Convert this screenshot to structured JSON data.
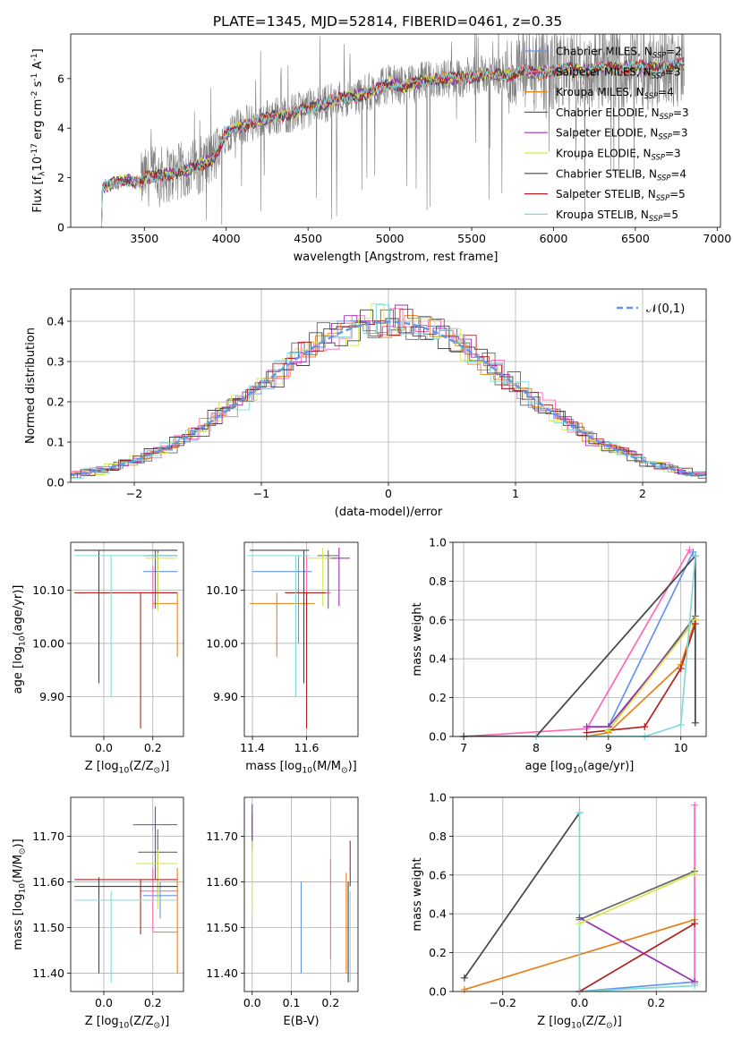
{
  "figure": {
    "title": "PLATE=1345, MJD=52814, FIBERID=0461, z=0.35"
  },
  "legend_entries": [
    {
      "name": "Chabrier MILES",
      "nssp": "2",
      "color": "#6495ed"
    },
    {
      "name": "Salpeter MILES",
      "nssp": "3",
      "color": "#ff69b4"
    },
    {
      "name": "Kroupa MILES",
      "nssp": "4",
      "color": "#e8801a"
    },
    {
      "name": "Chabrier ELODIE",
      "nssp": "3",
      "color": "#666666"
    },
    {
      "name": "Salpeter ELODIE",
      "nssp": "3",
      "color": "#9b30b8"
    },
    {
      "name": "Kroupa ELODIE",
      "nssp": "3",
      "color": "#d7e84a"
    },
    {
      "name": "Chabrier STELIB",
      "nssp": "4",
      "color": "#444444"
    },
    {
      "name": "Salpeter STELIB",
      "nssp": "5",
      "color": "#b22222"
    },
    {
      "name": "Kroupa STELIB",
      "nssp": "5",
      "color": "#7fdbda"
    }
  ],
  "chart_data": [
    {
      "id": "spectrum",
      "type": "line",
      "title": "PLATE=1345, MJD=52814, FIBERID=0461, z=0.35",
      "xlabel": "wavelength [Angstrom, rest frame]",
      "ylabel": "Flux [f$_\\lambda$10$^{-17}$ erg cm$^{-2}$ s$^{-1}$ A$^{-1}$]",
      "xlim": [
        3050,
        7020
      ],
      "ylim": [
        0,
        7.8
      ],
      "xticks": [
        3500,
        4000,
        4500,
        5000,
        5500,
        6000,
        6500,
        7000
      ],
      "yticks": [
        0,
        2,
        4,
        6
      ],
      "grid": false,
      "legend_position": "top-right",
      "data_continuum": {
        "x": [
          3220,
          3240,
          3300,
          3400,
          3480,
          3500,
          3600,
          3700,
          3800,
          3900,
          3950,
          4000,
          4100,
          4200,
          4300,
          4400,
          4500,
          4600,
          4700,
          4800,
          4900,
          5000,
          5100,
          5200,
          5300,
          5400,
          5500,
          5600,
          5700,
          5800,
          5900,
          6000,
          6100,
          6200,
          6300,
          6400,
          6500,
          6600,
          6700,
          6800
        ],
        "y": [
          0.0,
          1.6,
          1.75,
          1.9,
          1.8,
          2.0,
          2.1,
          2.2,
          2.4,
          2.7,
          3.0,
          3.8,
          4.1,
          4.3,
          4.5,
          4.6,
          4.8,
          5.0,
          5.2,
          5.3,
          5.5,
          5.8,
          5.7,
          5.9,
          6.0,
          6.0,
          6.1,
          6.2,
          6.1,
          6.3,
          6.2,
          6.3,
          6.4,
          6.3,
          6.5,
          6.4,
          6.5,
          6.4,
          6.5,
          6.6
        ]
      },
      "noise": {
        "data_start": 3480,
        "data_end": 6800,
        "strong_from": 5700,
        "model_start": 3220,
        "model_end": 6800
      }
    },
    {
      "id": "residuals",
      "type": "step",
      "xlabel": "(data-model)/error",
      "ylabel": "Normed distribution",
      "xlim": [
        -2.5,
        2.5
      ],
      "ylim": [
        0,
        0.48
      ],
      "xticks": [
        -2,
        -1,
        0,
        1,
        2
      ],
      "yticks": [
        0.0,
        0.1,
        0.2,
        0.3,
        0.4
      ],
      "grid": true,
      "gaussian_label": "$\\mathcal{N}(0,1)$",
      "legend_position": "top-right",
      "bin_width": 0.1
    },
    {
      "id": "age_vs_Z",
      "type": "errorbar",
      "xlabel": "Z [log$_{10}$(Z/Z$_\\odot$)]",
      "ylabel": "age  [log$_{10}$(age/yr)]",
      "xlim": [
        -0.135,
        0.325
      ],
      "ylim": [
        9.825,
        10.19
      ],
      "xticks": [
        0.0,
        0.2
      ],
      "yticks": [
        9.9,
        10.0,
        10.1
      ],
      "grid": true,
      "points": [
        {
          "series": "Chabrier MILES",
          "x": 0.23,
          "xerr": [
            0.07,
            0.07
          ],
          "y": 10.135,
          "yerr": [
            0.0,
            0.0
          ]
        },
        {
          "series": "Salpeter MILES",
          "x": 0.2,
          "xerr": [
            0.05,
            0.1
          ],
          "y": 10.095,
          "yerr": [
            0.03,
            0.05
          ]
        },
        {
          "series": "Kroupa MILES",
          "x": 0.3,
          "xerr": [
            0.1,
            0.0
          ],
          "y": 10.075,
          "yerr": [
            0.1,
            0.02
          ]
        },
        {
          "series": "Chabrier ELODIE",
          "x": 0.22,
          "xerr": [
            0.06,
            0.08
          ],
          "y": 10.165,
          "yerr": [
            0.1,
            0.01
          ]
        },
        {
          "series": "Salpeter ELODIE",
          "x": 0.21,
          "xerr": [
            0.04,
            0.09
          ],
          "y": 10.165,
          "yerr": [
            0.1,
            0.01
          ]
        },
        {
          "series": "Kroupa ELODIE",
          "x": 0.22,
          "xerr": [
            0.05,
            0.08
          ],
          "y": 10.16,
          "yerr": [
            0.1,
            0.01
          ]
        },
        {
          "series": "Chabrier STELIB",
          "x": -0.02,
          "xerr": [
            0.1,
            0.32
          ],
          "y": 10.175,
          "yerr": [
            0.25,
            0.0
          ]
        },
        {
          "series": "Salpeter STELIB",
          "x": 0.15,
          "xerr": [
            0.27,
            0.15
          ],
          "y": 10.095,
          "yerr": [
            0.255,
            0.0
          ]
        },
        {
          "series": "Kroupa STELIB",
          "x": 0.03,
          "xerr": [
            0.15,
            0.27
          ],
          "y": 10.165,
          "yerr": [
            0.265,
            0.0
          ]
        }
      ]
    },
    {
      "id": "age_vs_mass",
      "type": "errorbar",
      "xlabel": "mass [log$_{10}$(M/M$_\\odot$)]",
      "ylabel": "",
      "xlim": [
        11.37,
        11.79
      ],
      "ylim": [
        9.825,
        10.19
      ],
      "xticks": [
        11.4,
        11.6
      ],
      "yticks": [
        9.9,
        10.0,
        10.1
      ],
      "grid": true,
      "points": [
        {
          "series": "Chabrier MILES",
          "x": 11.57,
          "xerr": [
            0.17,
            0.05
          ],
          "y": 10.135,
          "yerr": [
            0.135,
            0.03
          ]
        },
        {
          "series": "Salpeter MILES",
          "x": 11.6,
          "xerr": [
            0.08,
            0.09
          ],
          "y": 10.095,
          "yerr": [
            0.05,
            0.07
          ]
        },
        {
          "series": "Kroupa MILES",
          "x": 11.49,
          "xerr": [
            0.1,
            0.14
          ],
          "y": 10.075,
          "yerr": [
            0.1,
            0.02
          ]
        },
        {
          "series": "Chabrier ELODIE",
          "x": 11.68,
          "xerr": [
            0.04,
            0.04
          ],
          "y": 10.165,
          "yerr": [
            0.1,
            0.01
          ]
        },
        {
          "series": "Salpeter ELODIE",
          "x": 11.72,
          "xerr": [
            0.05,
            0.04
          ],
          "y": 10.16,
          "yerr": [
            0.09,
            0.02
          ]
        },
        {
          "series": "Kroupa ELODIE",
          "x": 11.66,
          "xerr": [
            0.06,
            0.03
          ],
          "y": 10.16,
          "yerr": [
            0.09,
            0.02
          ]
        },
        {
          "series": "Chabrier STELIB",
          "x": 11.59,
          "xerr": [
            0.2,
            0.02
          ],
          "y": 10.175,
          "yerr": [
            0.25,
            0.0
          ]
        },
        {
          "series": "Salpeter STELIB",
          "x": 11.6,
          "xerr": [
            0.08,
            0.07
          ],
          "y": 10.095,
          "yerr": [
            0.255,
            0.0
          ]
        },
        {
          "series": "Kroupa STELIB",
          "x": 11.56,
          "xerr": [
            0.18,
            0.05
          ],
          "y": 10.165,
          "yerr": [
            0.265,
            0.0
          ]
        }
      ]
    },
    {
      "id": "weight_vs_age",
      "type": "line",
      "xlabel": "age  [log$_{10}$(age/yr)]",
      "ylabel": "mass weight",
      "xlim": [
        6.85,
        10.35
      ],
      "ylim": [
        0,
        1.0
      ],
      "xticks": [
        7,
        8,
        9,
        10
      ],
      "yticks": [
        0.0,
        0.2,
        0.4,
        0.6,
        0.8,
        1.0
      ],
      "grid": true,
      "series": [
        {
          "name": "Chabrier MILES",
          "x": [
            9.0,
            10.17
          ],
          "y": [
            0.05,
            0.95
          ]
        },
        {
          "name": "Salpeter MILES",
          "x": [
            7.0,
            8.7,
            10.12
          ],
          "y": [
            0.0,
            0.04,
            0.96
          ]
        },
        {
          "name": "Kroupa MILES",
          "x": [
            8.7,
            9.0,
            10.0,
            10.2
          ],
          "y": [
            0.0,
            0.02,
            0.37,
            0.6
          ]
        },
        {
          "name": "Chabrier ELODIE",
          "x": [
            9.0,
            10.2
          ],
          "y": [
            0.03,
            0.62
          ]
        },
        {
          "name": "Salpeter ELODIE",
          "x": [
            8.7,
            9.0,
            10.2
          ],
          "y": [
            0.05,
            0.05,
            0.6
          ]
        },
        {
          "name": "Kroupa ELODIE",
          "x": [
            9.0,
            10.2
          ],
          "y": [
            0.03,
            0.6
          ]
        },
        {
          "name": "Chabrier STELIB",
          "x": [
            7.0,
            8.0,
            10.2,
            10.2
          ],
          "y": [
            0.0,
            0.0,
            0.93,
            0.07
          ]
        },
        {
          "name": "Salpeter STELIB",
          "x": [
            8.7,
            9.5,
            10.0,
            10.2
          ],
          "y": [
            0.02,
            0.05,
            0.35,
            0.58
          ]
        },
        {
          "name": "Kroupa STELIB",
          "x": [
            8.0,
            9.5,
            10.0,
            10.2
          ],
          "y": [
            0.0,
            0.0,
            0.06,
            0.93
          ]
        }
      ]
    },
    {
      "id": "mass_vs_Z",
      "type": "errorbar",
      "xlabel": "Z [log$_{10}$(Z/Z$_\\odot$)]",
      "ylabel": "mass [log$_{10}$(M/M$_\\odot$)]",
      "xlim": [
        -0.135,
        0.325
      ],
      "ylim": [
        11.36,
        11.785
      ],
      "xticks": [
        0.0,
        0.2
      ],
      "yticks": [
        11.4,
        11.5,
        11.6,
        11.7
      ],
      "grid": true,
      "points": [
        {
          "series": "Chabrier MILES",
          "x": 0.23,
          "xerr": [
            0.07,
            0.07
          ],
          "y": 11.57,
          "yerr": [
            0.05,
            0.03
          ]
        },
        {
          "series": "Salpeter MILES",
          "x": 0.2,
          "xerr": [
            0.05,
            0.1
          ],
          "y": 11.58,
          "yerr": [
            0.09,
            0.05
          ]
        },
        {
          "series": "Kroupa MILES",
          "x": 0.3,
          "xerr": [
            0.1,
            0.0
          ],
          "y": 11.49,
          "yerr": [
            0.09,
            0.14
          ]
        },
        {
          "series": "Chabrier ELODIE",
          "x": 0.22,
          "xerr": [
            0.08,
            0.08
          ],
          "y": 11.665,
          "yerr": [
            0.1,
            0.05
          ]
        },
        {
          "series": "Salpeter ELODIE",
          "x": 0.21,
          "xerr": [
            0.09,
            0.09
          ],
          "y": 11.725,
          "yerr": [
            0.12,
            0.04
          ]
        },
        {
          "series": "Kroupa ELODIE",
          "x": 0.22,
          "xerr": [
            0.09,
            0.08
          ],
          "y": 11.64,
          "yerr": [
            0.1,
            0.03
          ]
        },
        {
          "series": "Chabrier STELIB",
          "x": -0.02,
          "xerr": [
            0.1,
            0.32
          ],
          "y": 11.59,
          "yerr": [
            0.19,
            0.02
          ]
        },
        {
          "series": "Salpeter STELIB",
          "x": 0.15,
          "xerr": [
            0.27,
            0.15
          ],
          "y": 11.605,
          "yerr": [
            0.12,
            0.0
          ]
        },
        {
          "series": "Kroupa STELIB",
          "x": 0.03,
          "xerr": [
            0.15,
            0.27
          ],
          "y": 11.56,
          "yerr": [
            0.18,
            0.02
          ]
        }
      ]
    },
    {
      "id": "mass_vs_ebv",
      "type": "errorbar",
      "xlabel": "E(B-V)",
      "ylabel": "",
      "xlim": [
        -0.02,
        0.27
      ],
      "ylim": [
        11.36,
        11.785
      ],
      "xticks": [
        0.0,
        0.1,
        0.2
      ],
      "yticks": [
        11.4,
        11.5,
        11.6,
        11.7
      ],
      "grid": true,
      "points": [
        {
          "series": "Chabrier MILES",
          "x": 0.125,
          "xerr": [
            0,
            0
          ],
          "y": 11.5,
          "yerr": [
            0.1,
            0.1
          ]
        },
        {
          "series": "Salpeter MILES",
          "x": 0.2,
          "xerr": [
            0,
            0
          ],
          "y": 11.54,
          "yerr": [
            0.11,
            0.11
          ]
        },
        {
          "series": "Kroupa MILES",
          "x": 0.24,
          "xerr": [
            0,
            0
          ],
          "y": 11.51,
          "yerr": [
            0.11,
            0.11
          ]
        },
        {
          "series": "Chabrier ELODIE",
          "x": 0.0,
          "xerr": [
            0,
            0
          ],
          "y": 11.71,
          "yerr": [
            0.04,
            0.04
          ]
        },
        {
          "series": "Salpeter ELODIE",
          "x": 0.0,
          "xerr": [
            0,
            0
          ],
          "y": 11.73,
          "yerr": [
            0.04,
            0.04
          ]
        },
        {
          "series": "Kroupa ELODIE",
          "x": 0.0,
          "xerr": [
            0,
            0
          ],
          "y": 11.61,
          "yerr": [
            0.08,
            0.08
          ]
        },
        {
          "series": "Chabrier STELIB",
          "x": 0.245,
          "xerr": [
            0,
            0
          ],
          "y": 11.49,
          "yerr": [
            0.11,
            0.11
          ]
        },
        {
          "series": "Salpeter STELIB",
          "x": 0.25,
          "xerr": [
            0,
            0
          ],
          "y": 11.64,
          "yerr": [
            0.05,
            0.05
          ]
        },
        {
          "series": "Kroupa STELIB",
          "x": 0.25,
          "xerr": [
            0,
            0
          ],
          "y": 11.48,
          "yerr": [
            0.1,
            0.1
          ]
        }
      ]
    },
    {
      "id": "weight_vs_Z",
      "type": "line",
      "xlabel": "Z [log$_{10}$(Z/Z$_\\odot$)]",
      "ylabel": "mass weight",
      "xlim": [
        -0.33,
        0.33
      ],
      "ylim": [
        0,
        1.0
      ],
      "xticks": [
        -0.2,
        0.0,
        0.2
      ],
      "yticks": [
        0.0,
        0.2,
        0.4,
        0.6,
        0.8,
        1.0
      ],
      "grid": true,
      "series": [
        {
          "name": "Chabrier MILES",
          "x": [
            0.0,
            0.3
          ],
          "y": [
            0.0,
            0.05
          ]
        },
        {
          "name": "Salpeter MILES",
          "x": [
            0.3,
            0.3
          ],
          "y": [
            0.04,
            0.96
          ]
        },
        {
          "name": "Kroupa MILES",
          "x": [
            -0.3,
            0.3
          ],
          "y": [
            0.01,
            0.37
          ]
        },
        {
          "name": "Chabrier ELODIE",
          "x": [
            0.0,
            0.3
          ],
          "y": [
            0.37,
            0.62
          ]
        },
        {
          "name": "Salpeter ELODIE",
          "x": [
            0.0,
            0.3
          ],
          "y": [
            0.38,
            0.05
          ]
        },
        {
          "name": "Kroupa ELODIE",
          "x": [
            0.0,
            0.3
          ],
          "y": [
            0.35,
            0.61
          ]
        },
        {
          "name": "Chabrier STELIB",
          "x": [
            -0.3,
            0.0
          ],
          "y": [
            0.07,
            0.92
          ]
        },
        {
          "name": "Salpeter STELIB",
          "x": [
            0.0,
            0.3,
            0.0
          ],
          "y": [
            0.0,
            0.35,
            0.0
          ]
        },
        {
          "name": "Kroupa STELIB",
          "x": [
            0.0,
            0.0,
            0.3
          ],
          "y": [
            0.92,
            0.0,
            0.03
          ]
        }
      ]
    }
  ]
}
